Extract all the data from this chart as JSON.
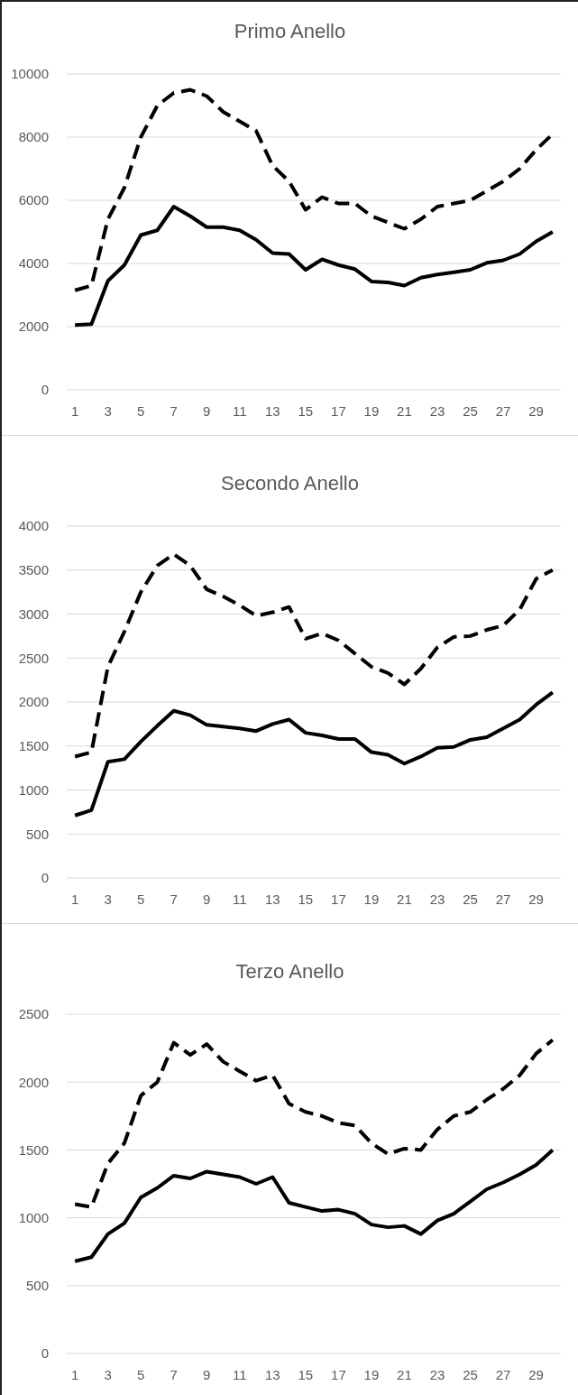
{
  "chart_data": [
    {
      "type": "line",
      "title": "Primo Anello",
      "x": [
        1,
        2,
        3,
        4,
        5,
        6,
        7,
        8,
        9,
        10,
        11,
        12,
        13,
        14,
        15,
        16,
        17,
        18,
        19,
        20,
        21,
        22,
        23,
        24,
        25,
        26,
        27,
        28,
        29,
        30
      ],
      "xlim": [
        0.5,
        30.5
      ],
      "xticks": [
        1,
        3,
        5,
        7,
        9,
        11,
        13,
        15,
        17,
        19,
        21,
        23,
        25,
        27,
        29
      ],
      "ylim": [
        0,
        10000
      ],
      "yticks": [
        0,
        2000,
        4000,
        6000,
        8000,
        10000
      ],
      "grid": "y",
      "series": [
        {
          "color": "#000000",
          "line_style": "dashed",
          "values": [
            3150,
            3300,
            5400,
            6400,
            8000,
            9000,
            9400,
            9500,
            9300,
            8800,
            8500,
            8200,
            7100,
            6600,
            5700,
            6100,
            5900,
            5900,
            5500,
            5300,
            5100,
            5400,
            5800,
            5900,
            6000,
            6300,
            6600,
            7000,
            7600,
            8100
          ]
        },
        {
          "color": "#000000",
          "line_style": "solid",
          "values": [
            2050,
            2080,
            3450,
            3950,
            4900,
            5050,
            5800,
            5500,
            5150,
            5150,
            5050,
            4750,
            4330,
            4300,
            3800,
            4130,
            3950,
            3820,
            3430,
            3400,
            3300,
            3550,
            3650,
            3720,
            3800,
            4020,
            4100,
            4300,
            4700,
            5000
          ]
        }
      ]
    },
    {
      "type": "line",
      "title": "Secondo Anello",
      "x": [
        1,
        2,
        3,
        4,
        5,
        6,
        7,
        8,
        9,
        10,
        11,
        12,
        13,
        14,
        15,
        16,
        17,
        18,
        19,
        20,
        21,
        22,
        23,
        24,
        25,
        26,
        27,
        28,
        29,
        30
      ],
      "xlim": [
        0.5,
        30.5
      ],
      "xticks": [
        1,
        3,
        5,
        7,
        9,
        11,
        13,
        15,
        17,
        19,
        21,
        23,
        25,
        27,
        29
      ],
      "ylim": [
        0,
        4000
      ],
      "yticks": [
        0,
        500,
        1000,
        1500,
        2000,
        2500,
        3000,
        3500,
        4000
      ],
      "grid": "y",
      "series": [
        {
          "color": "#000000",
          "line_style": "dashed",
          "values": [
            1380,
            1430,
            2400,
            2800,
            3250,
            3550,
            3680,
            3550,
            3280,
            3200,
            3100,
            2980,
            3020,
            3080,
            2720,
            2780,
            2700,
            2550,
            2400,
            2330,
            2200,
            2380,
            2620,
            2740,
            2750,
            2820,
            2870,
            3050,
            3400,
            3500
          ]
        },
        {
          "color": "#000000",
          "line_style": "solid",
          "values": [
            710,
            770,
            1320,
            1350,
            1550,
            1730,
            1900,
            1850,
            1740,
            1720,
            1700,
            1670,
            1750,
            1800,
            1650,
            1620,
            1580,
            1580,
            1430,
            1400,
            1300,
            1380,
            1480,
            1490,
            1570,
            1600,
            1700,
            1800,
            1970,
            2110
          ]
        }
      ]
    },
    {
      "type": "line",
      "title": "Terzo Anello",
      "x": [
        1,
        2,
        3,
        4,
        5,
        6,
        7,
        8,
        9,
        10,
        11,
        12,
        13,
        14,
        15,
        16,
        17,
        18,
        19,
        20,
        21,
        22,
        23,
        24,
        25,
        26,
        27,
        28,
        29,
        30
      ],
      "xlim": [
        0.5,
        30.5
      ],
      "xticks": [
        1,
        3,
        5,
        7,
        9,
        11,
        13,
        15,
        17,
        19,
        21,
        23,
        25,
        27,
        29
      ],
      "ylim": [
        0,
        2500
      ],
      "yticks": [
        0,
        500,
        1000,
        1500,
        2000,
        2500
      ],
      "grid": "y",
      "series": [
        {
          "color": "#000000",
          "line_style": "dashed",
          "values": [
            1100,
            1080,
            1400,
            1550,
            1900,
            2000,
            2290,
            2200,
            2280,
            2150,
            2080,
            2010,
            2050,
            1840,
            1780,
            1750,
            1700,
            1680,
            1550,
            1470,
            1510,
            1500,
            1650,
            1750,
            1780,
            1870,
            1950,
            2050,
            2210,
            2310
          ]
        },
        {
          "color": "#000000",
          "line_style": "solid",
          "values": [
            680,
            710,
            880,
            960,
            1150,
            1220,
            1310,
            1290,
            1340,
            1320,
            1300,
            1250,
            1300,
            1110,
            1080,
            1050,
            1060,
            1030,
            950,
            930,
            940,
            880,
            980,
            1030,
            1120,
            1210,
            1260,
            1320,
            1390,
            1500
          ]
        }
      ]
    }
  ]
}
